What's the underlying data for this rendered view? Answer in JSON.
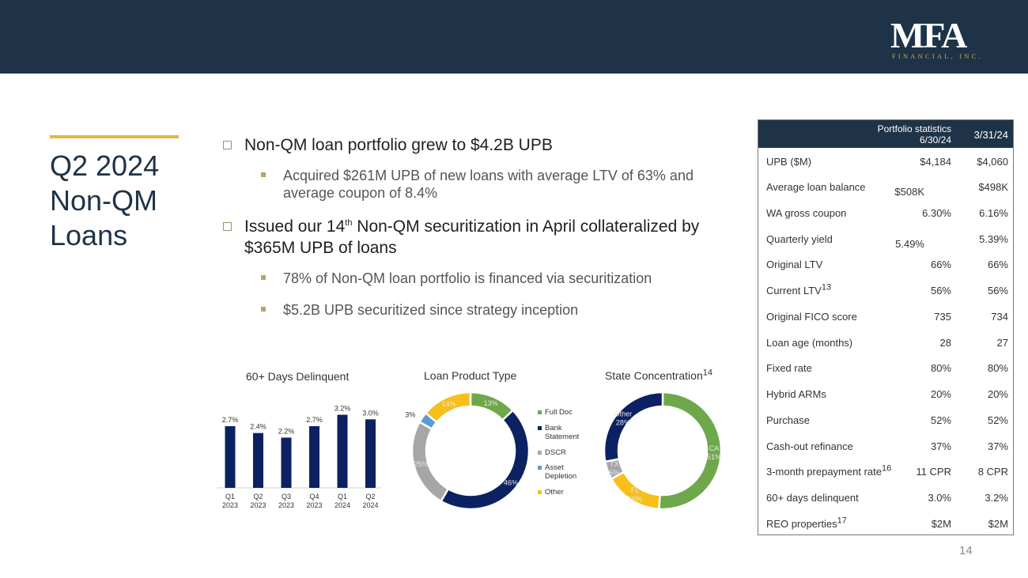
{
  "brand": {
    "logo_main": "MFA",
    "logo_sub": "FINANCIAL, INC.",
    "navy": "#1e3348",
    "gold": "#e6b83a"
  },
  "slide": {
    "title": "Q2 2024 Non-QM Loans",
    "page_number": "14",
    "bullets": {
      "b1": "Non-QM loan portfolio grew to $4.2B UPB",
      "b1a": "Acquired $261M UPB of new loans with average LTV of 63% and average coupon of 8.4%",
      "b2_pre": "Issued our 14",
      "b2_sup": "th",
      "b2_post": " Non-QM securitization in April collateralized by $365M UPB of loans",
      "b2a": "78% of Non-QM loan portfolio is financed via securitization",
      "b2b": "$5.2B UPB securitized since strategy inception"
    }
  },
  "chart_data": [
    {
      "type": "bar",
      "title": "60+ Days Delinquent",
      "categories": [
        [
          "Q1",
          "2023"
        ],
        [
          "Q2",
          "2023"
        ],
        [
          "Q3",
          "2023"
        ],
        [
          "Q4",
          "2023"
        ],
        [
          "Q1",
          "2024"
        ],
        [
          "Q2",
          "2024"
        ]
      ],
      "values": [
        2.7,
        2.4,
        2.2,
        2.7,
        3.2,
        3.0
      ],
      "labels": [
        "2.7%",
        "2.4%",
        "2.2%",
        "2.7%",
        "3.2%",
        "3.0%"
      ],
      "ylim": [
        0,
        3.6
      ],
      "color": "#0b2161"
    },
    {
      "type": "pie",
      "title": "Loan Product Type",
      "donut": true,
      "slices": [
        {
          "name": "Full Doc",
          "value": 13,
          "label": "13%",
          "color": "#6ea84a"
        },
        {
          "name": "Bank Statement",
          "value": 46,
          "label": "46%",
          "color": "#0b2161"
        },
        {
          "name": "DSCR",
          "value": 25,
          "label": "25%",
          "color": "#a6a6a6"
        },
        {
          "name": "Asset Depletion",
          "value": 3,
          "label": "3%",
          "color": "#5b9bd5"
        },
        {
          "name": "Other",
          "value": 14,
          "label": "14%",
          "color": "#f6bf1a"
        }
      ]
    },
    {
      "type": "pie",
      "title": "State Concentration",
      "title_sup": "14",
      "donut": true,
      "slices": [
        {
          "name": "CA",
          "value": 51,
          "label": "51%",
          "color": "#6ea84a"
        },
        {
          "name": "FL",
          "value": 16,
          "label": "16%",
          "color": "#f6bf1a"
        },
        {
          "name": "TX",
          "value": 5,
          "label": "5%",
          "color": "#a6a6a6"
        },
        {
          "name": "Other",
          "value": 28,
          "label": "28%",
          "color": "#0b2161"
        }
      ]
    }
  ],
  "stats_table": {
    "header_label": "Portfolio statistics",
    "date1": "6/30/24",
    "date2": "3/31/24",
    "rows": [
      {
        "label": "UPB ($M)",
        "sup": "",
        "v1": "$4,184",
        "v2": "$4,060"
      },
      {
        "label": "Average loan balance",
        "sup": "",
        "v1": "$508K",
        "v2": "$498K"
      },
      {
        "label": "WA gross coupon",
        "sup": "",
        "v1": "6.30%",
        "v2": "6.16%"
      },
      {
        "label": "Quarterly yield",
        "sup": "",
        "v1": "5.49%",
        "v2": "5.39%"
      },
      {
        "label": "Original LTV",
        "sup": "",
        "v1": "66%",
        "v2": "66%"
      },
      {
        "label": "Current LTV",
        "sup": "13",
        "v1": "56%",
        "v2": "56%"
      },
      {
        "label": "Original FICO score",
        "sup": "",
        "v1": "735",
        "v2": "734"
      },
      {
        "label": "Loan age (months)",
        "sup": "",
        "v1": "28",
        "v2": "27"
      },
      {
        "label": "Fixed rate",
        "sup": "",
        "v1": "80%",
        "v2": "80%"
      },
      {
        "label": "Hybrid ARMs",
        "sup": "",
        "v1": "20%",
        "v2": "20%"
      },
      {
        "label": "Purchase",
        "sup": "",
        "v1": "52%",
        "v2": "52%"
      },
      {
        "label": "Cash-out refinance",
        "sup": "",
        "v1": "37%",
        "v2": "37%"
      },
      {
        "label": "3-month prepayment rate",
        "sup": "16",
        "v1": "11 CPR",
        "v2": "8 CPR"
      },
      {
        "label": "60+ days delinquent",
        "sup": "",
        "v1": "3.0%",
        "v2": "3.2%"
      },
      {
        "label": "REO properties",
        "sup": "17",
        "v1": "$2M",
        "v2": "$2M"
      }
    ]
  }
}
